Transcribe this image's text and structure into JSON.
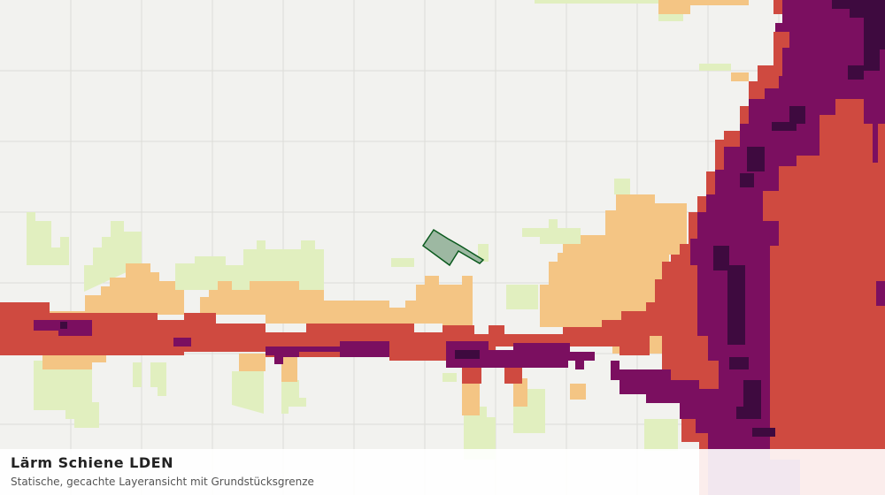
{
  "header": {
    "title": "Lärm Schiene LDEN",
    "subtitle": "Statische, gecachte Layeransicht mit Grundstücksgrenze"
  }
}
